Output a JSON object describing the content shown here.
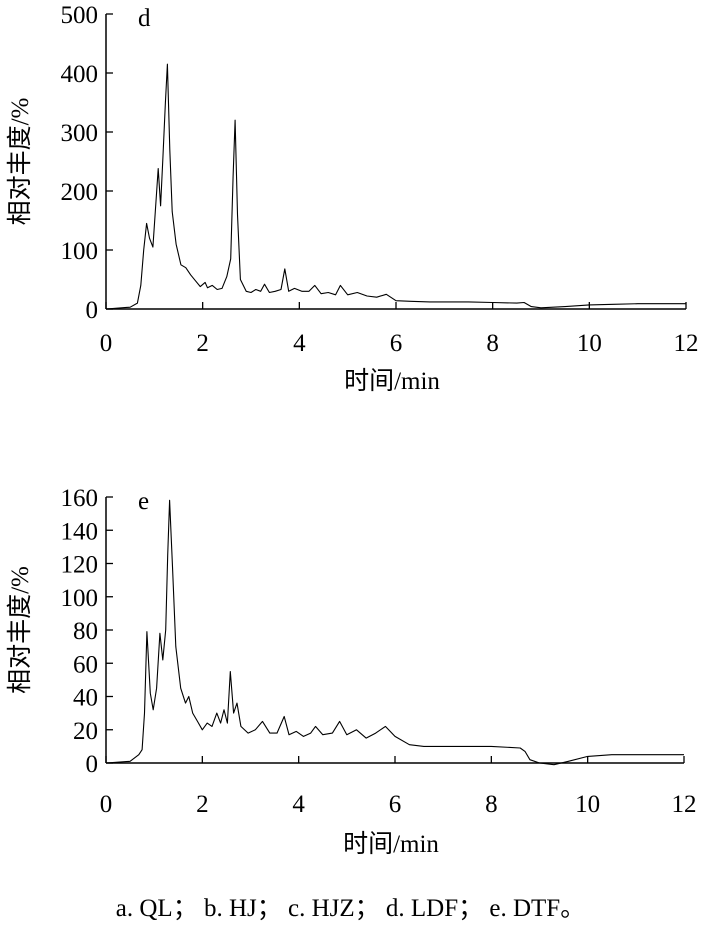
{
  "chart_data": [
    {
      "type": "line",
      "panel_label": "d",
      "xlabel": "时间/min",
      "ylabel": "相对丰度/%",
      "xlim": [
        0,
        12
      ],
      "ylim": [
        0,
        500
      ],
      "x_ticks": [
        0,
        2,
        4,
        6,
        8,
        10,
        12
      ],
      "y_ticks": [
        0,
        100,
        200,
        300,
        400,
        500
      ],
      "grid": false,
      "series": [
        {
          "x": [
            0,
            0.5,
            0.65,
            0.72,
            0.78,
            0.84,
            0.9,
            0.97,
            1.02,
            1.08,
            1.13,
            1.18,
            1.23,
            1.27,
            1.32,
            1.37,
            1.45,
            1.55,
            1.65,
            1.75,
            1.85,
            1.95,
            2.05,
            2.1,
            2.2,
            2.3,
            2.4,
            2.5,
            2.58,
            2.63,
            2.67,
            2.72,
            2.78,
            2.9,
            3.0,
            3.1,
            3.2,
            3.28,
            3.38,
            3.5,
            3.62,
            3.7,
            3.78,
            3.9,
            4.05,
            4.2,
            4.32,
            4.45,
            4.6,
            4.75,
            4.85,
            5.0,
            5.2,
            5.4,
            5.6,
            5.8,
            6.0,
            6.3,
            6.7,
            7.0,
            7.5,
            8.0,
            8.5,
            8.65,
            8.8,
            9.0,
            9.5,
            10.0,
            10.5,
            11.0,
            12.0
          ],
          "y": [
            0,
            3,
            10,
            40,
            100,
            145,
            120,
            105,
            165,
            238,
            175,
            260,
            350,
            415,
            270,
            165,
            110,
            75,
            70,
            58,
            48,
            38,
            45,
            36,
            40,
            33,
            35,
            55,
            85,
            225,
            320,
            160,
            50,
            30,
            28,
            33,
            30,
            42,
            28,
            30,
            33,
            68,
            30,
            35,
            30,
            30,
            40,
            26,
            28,
            24,
            40,
            24,
            28,
            22,
            20,
            25,
            14,
            13,
            12,
            12,
            12,
            11,
            10,
            11,
            4,
            2,
            4,
            7,
            8,
            9,
            9
          ]
        }
      ]
    },
    {
      "type": "line",
      "panel_label": "e",
      "xlabel": "时间/min",
      "ylabel": "相对丰度/%",
      "xlim": [
        0,
        12
      ],
      "ylim": [
        0,
        160
      ],
      "x_ticks": [
        0,
        2,
        4,
        6,
        8,
        10,
        12
      ],
      "y_ticks": [
        0,
        20,
        40,
        60,
        80,
        100,
        120,
        140,
        160
      ],
      "grid": false,
      "series": [
        {
          "x": [
            0,
            0.5,
            0.68,
            0.75,
            0.8,
            0.85,
            0.92,
            0.98,
            1.05,
            1.12,
            1.18,
            1.24,
            1.28,
            1.32,
            1.38,
            1.45,
            1.55,
            1.65,
            1.72,
            1.8,
            1.9,
            2.0,
            2.1,
            2.2,
            2.3,
            2.38,
            2.45,
            2.52,
            2.58,
            2.65,
            2.72,
            2.8,
            2.95,
            3.1,
            3.25,
            3.4,
            3.55,
            3.7,
            3.8,
            3.95,
            4.1,
            4.25,
            4.35,
            4.5,
            4.7,
            4.85,
            5.0,
            5.2,
            5.4,
            5.6,
            5.8,
            6.0,
            6.3,
            6.6,
            7.0,
            7.5,
            8.0,
            8.6,
            8.7,
            8.8,
            9.0,
            9.3,
            9.6,
            10.0,
            10.5,
            11.0,
            12.0
          ],
          "y": [
            0,
            1,
            5,
            8,
            30,
            79,
            42,
            32,
            45,
            78,
            62,
            80,
            125,
            158,
            118,
            70,
            45,
            36,
            40,
            30,
            25,
            20,
            24,
            22,
            30,
            24,
            32,
            24,
            55,
            30,
            36,
            22,
            18,
            20,
            25,
            18,
            18,
            28,
            17,
            19,
            16,
            18,
            22,
            17,
            18,
            25,
            17,
            20,
            15,
            18,
            22,
            16,
            11,
            10,
            10,
            10,
            10,
            9,
            7,
            2,
            0,
            -1,
            1,
            4,
            5,
            5,
            5
          ]
        }
      ]
    }
  ],
  "caption": "a. QL；  b. HJ；  c. HJZ；  d. LDF；  e. DTF。"
}
